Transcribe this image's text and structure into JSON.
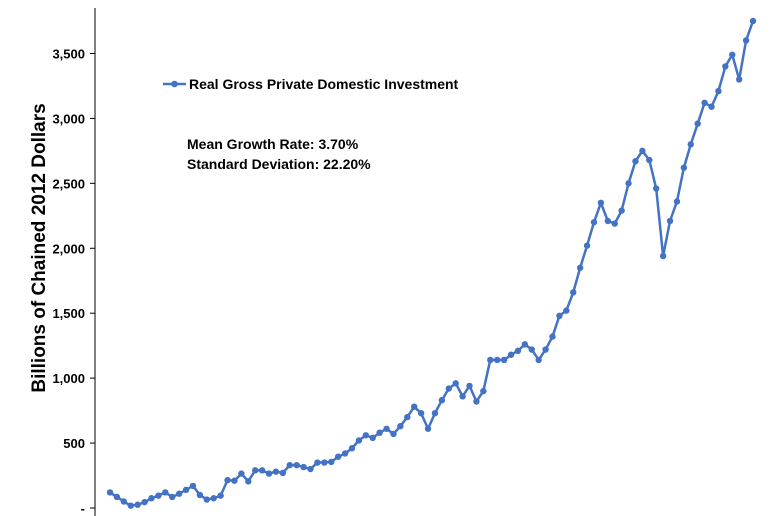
{
  "chart_data": {
    "type": "line",
    "ylabel": "Billions of Chained 2012 Dollars",
    "ylim": [
      0,
      3750
    ],
    "yticks": [
      0,
      500,
      1000,
      1500,
      2000,
      2500,
      3000,
      3500
    ],
    "ytick_labels": [
      "-",
      "500",
      "1,000",
      "1,500",
      "2,000",
      "2,500",
      "3,000",
      "3,500"
    ],
    "grid": false,
    "legend_position": "top-left",
    "annotations": [
      "Mean Growth Rate: 3.70%",
      "Standard Deviation: 22.20%"
    ],
    "colors": {
      "series": "#4472C4"
    },
    "series": [
      {
        "name": "Real Gross Private Domestic Investment",
        "values": [
          120,
          85,
          50,
          18,
          25,
          45,
          75,
          95,
          120,
          85,
          110,
          140,
          170,
          100,
          65,
          75,
          95,
          215,
          210,
          265,
          205,
          290,
          290,
          265,
          280,
          270,
          330,
          330,
          315,
          300,
          350,
          350,
          355,
          395,
          420,
          460,
          520,
          560,
          540,
          580,
          610,
          570,
          630,
          700,
          780,
          730,
          610,
          730,
          830,
          920,
          960,
          860,
          940,
          820,
          900,
          1140,
          1140,
          1140,
          1180,
          1210,
          1260,
          1220,
          1140,
          1220,
          1320,
          1480,
          1520,
          1660,
          1850,
          2020,
          2200,
          2350,
          2210,
          2190,
          2290,
          2500,
          2670,
          2750,
          2680,
          2460,
          1940,
          2210,
          2360,
          2620,
          2800,
          2960,
          3120,
          3090,
          3210,
          3400,
          3490,
          3300,
          3600,
          3750
        ]
      }
    ]
  }
}
